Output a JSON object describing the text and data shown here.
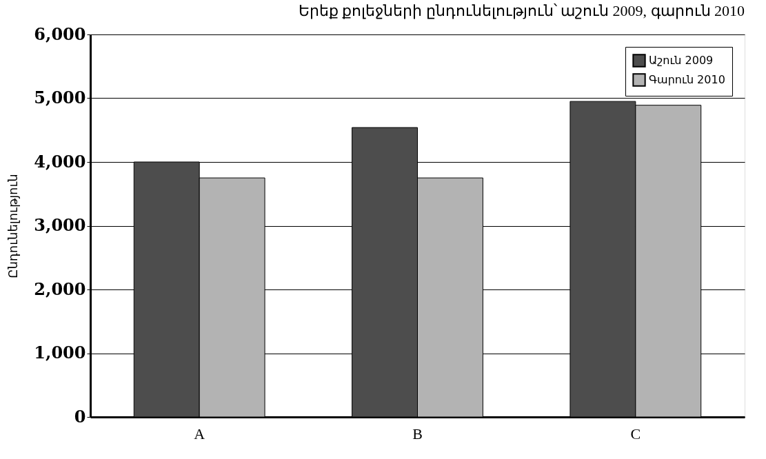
{
  "chart_data": {
    "type": "bar",
    "title": "Երեք քոլեջների ընդունելություն՝ աշուն 2009, գարուն 2010",
    "ylabel": "Ընդունելություն",
    "categories": [
      "A",
      "B",
      "C"
    ],
    "series": [
      {
        "name": "Աշուն 2009",
        "color": "#4d4d4d",
        "values": [
          4000,
          4540,
          4950
        ]
      },
      {
        "name": "Գարուն 2010",
        "color": "#b3b3b3",
        "values": [
          3750,
          3750,
          4890
        ]
      }
    ],
    "ylim": [
      0,
      6000
    ],
    "yticks": [
      {
        "value": 0,
        "label": "0"
      },
      {
        "value": 1000,
        "label": "1,000"
      },
      {
        "value": 2000,
        "label": "2,000"
      },
      {
        "value": 3000,
        "label": "3,000"
      },
      {
        "value": 4000,
        "label": "4,000"
      },
      {
        "value": 5000,
        "label": "5,000"
      },
      {
        "value": 6000,
        "label": "6,000"
      }
    ],
    "grid": "y",
    "legend": "top right"
  }
}
